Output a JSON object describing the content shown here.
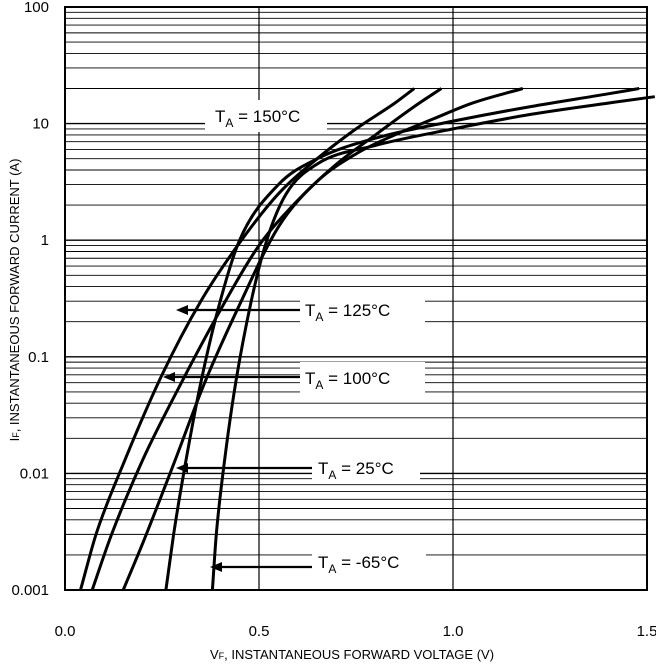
{
  "chart_data": {
    "type": "line",
    "title": "",
    "xlabel": "VF, INSTANTANEOUS FORWARD VOLTAGE (V)",
    "ylabel": "IF, INSTANTANEOUS FORWARD  CURRENT (A)",
    "x_scale": "linear",
    "y_scale": "log",
    "xlim": [
      0.0,
      1.5
    ],
    "ylim": [
      0.001,
      100
    ],
    "x_ticks": [
      "0.0",
      "0.5",
      "1.0",
      "1.5"
    ],
    "y_ticks": [
      "0.001",
      "0.01",
      "0.1",
      "1",
      "10",
      "100"
    ],
    "grid": true,
    "series": [
      {
        "name": "TA = 150°C",
        "x": [
          0.04,
          0.08,
          0.15,
          0.25,
          0.35,
          0.45,
          0.55,
          0.65,
          0.75,
          0.85,
          0.9
        ],
        "y": [
          0.001,
          0.003,
          0.012,
          0.07,
          0.3,
          0.95,
          2.5,
          5.0,
          9.0,
          15.0,
          20.0
        ]
      },
      {
        "name": "TA = 125°C",
        "x": [
          0.07,
          0.12,
          0.2,
          0.3,
          0.4,
          0.5,
          0.6,
          0.7,
          0.8,
          0.9,
          0.97
        ],
        "y": [
          0.001,
          0.003,
          0.013,
          0.06,
          0.25,
          0.9,
          2.2,
          4.5,
          8.0,
          14.0,
          20.0
        ]
      },
      {
        "name": "TA = 100°C",
        "x": [
          0.15,
          0.2,
          0.28,
          0.36,
          0.45,
          0.55,
          0.65,
          0.75,
          0.85,
          0.95,
          1.05,
          1.18
        ],
        "y": [
          0.001,
          0.0025,
          0.012,
          0.06,
          0.28,
          1.3,
          3.2,
          5.5,
          8.0,
          11.0,
          15.0,
          20.0
        ]
      },
      {
        "name": "TA = 25°C",
        "x": [
          0.26,
          0.28,
          0.31,
          0.35,
          0.4,
          0.45,
          0.55,
          0.65,
          0.8,
          1.0,
          1.2,
          1.4,
          1.48
        ],
        "y": [
          0.001,
          0.003,
          0.012,
          0.06,
          0.3,
          1.0,
          3.0,
          5.0,
          7.5,
          10.5,
          14.0,
          18.0,
          20.0
        ]
      },
      {
        "name": "TA = -65°C",
        "x": [
          0.38,
          0.39,
          0.41,
          0.44,
          0.48,
          0.52,
          0.57,
          0.65,
          0.8,
          1.0,
          1.2,
          1.4,
          1.52
        ],
        "y": [
          0.001,
          0.003,
          0.012,
          0.06,
          0.3,
          1.0,
          2.5,
          4.5,
          6.5,
          9.0,
          12.0,
          15.0,
          17.0
        ]
      }
    ],
    "annotations": [
      {
        "prefix": "T",
        "sub": "A",
        "suffix": " = 150°C"
      },
      {
        "prefix": "T",
        "sub": "A",
        "suffix": " = 125°C"
      },
      {
        "prefix": "T",
        "sub": "A",
        "suffix": " = 100°C"
      },
      {
        "prefix": "T",
        "sub": "A",
        "suffix": " = 25°C"
      },
      {
        "prefix": "T",
        "sub": "A",
        "suffix": " = -65°C"
      }
    ],
    "x_axis_label_parts": {
      "main": "V",
      "sub": "F",
      "rest": ", INSTANTANEOUS FORWARD VOLTAGE (V)"
    },
    "y_axis_label_parts": {
      "main": "I",
      "sub": "F",
      "rest": ", INSTANTANEOUS FORWARD  CURRENT (A)"
    }
  }
}
